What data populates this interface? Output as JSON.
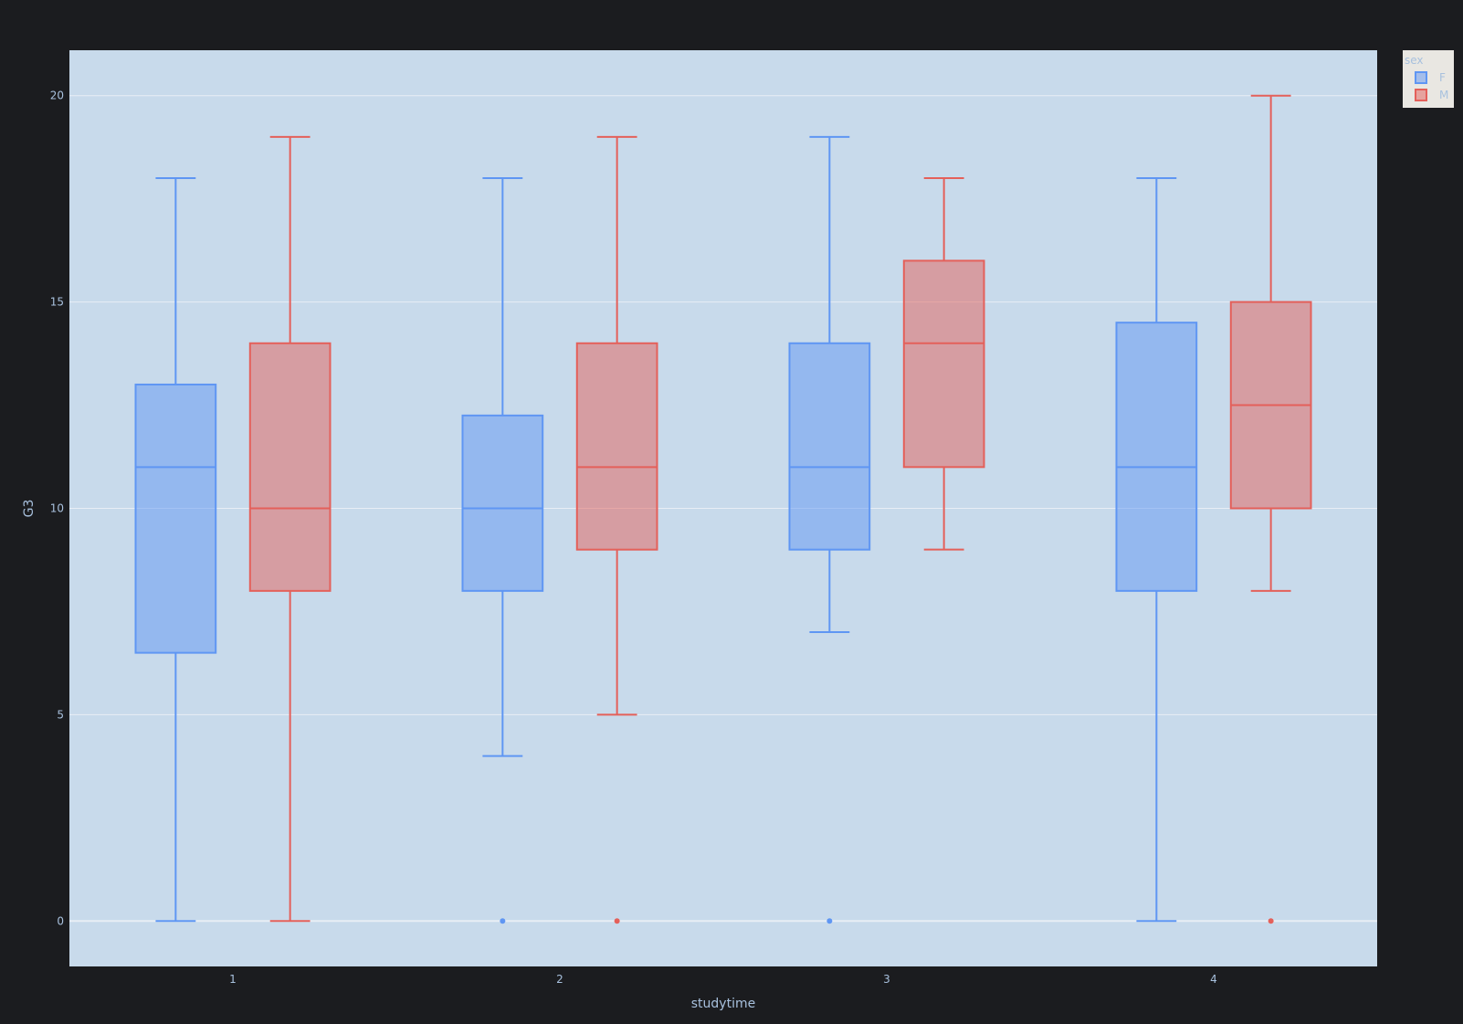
{
  "chart_data": {
    "type": "box",
    "xlabel": "studytime",
    "ylabel": "G3",
    "categories": [
      "1",
      "2",
      "3",
      "4"
    ],
    "ylim": [
      -1.1,
      21.1
    ],
    "yticks": [
      0,
      5,
      10,
      15,
      20
    ],
    "grid": true,
    "legend": {
      "title": "sex",
      "placement": "top-right",
      "entries": [
        "F",
        "M"
      ]
    },
    "colors": {
      "F": "#5f96f3",
      "M": "#e4605a",
      "plot_bg": "#c8daeb",
      "page_bg": "#1b1c1f",
      "grid": "#e8eef5",
      "legend_bg": "#e9e7e2",
      "text": "#a8c1de"
    },
    "series": [
      {
        "name": "F",
        "boxes": [
          {
            "category": "1",
            "min": 0,
            "q1": 6.5,
            "median": 11,
            "q3": 13,
            "max": 18,
            "outliers": []
          },
          {
            "category": "2",
            "min": 4,
            "q1": 8,
            "median": 10,
            "q3": 12.25,
            "max": 18,
            "outliers": [
              0
            ]
          },
          {
            "category": "3",
            "min": 7,
            "q1": 9,
            "median": 11,
            "q3": 14,
            "max": 19,
            "outliers": [
              0
            ]
          },
          {
            "category": "4",
            "min": 0,
            "q1": 8,
            "median": 11,
            "q3": 14.5,
            "max": 18,
            "outliers": []
          }
        ]
      },
      {
        "name": "M",
        "boxes": [
          {
            "category": "1",
            "min": 0,
            "q1": 8,
            "median": 10,
            "q3": 14,
            "max": 19,
            "outliers": []
          },
          {
            "category": "2",
            "min": 5,
            "q1": 9,
            "median": 11,
            "q3": 14,
            "max": 19,
            "outliers": [
              0
            ]
          },
          {
            "category": "3",
            "min": 9,
            "q1": 11,
            "median": 14,
            "q3": 16,
            "max": 18,
            "outliers": []
          },
          {
            "category": "4",
            "min": 8,
            "q1": 10,
            "median": 12.5,
            "q3": 15,
            "max": 20,
            "outliers": [
              0
            ]
          }
        ]
      }
    ]
  }
}
